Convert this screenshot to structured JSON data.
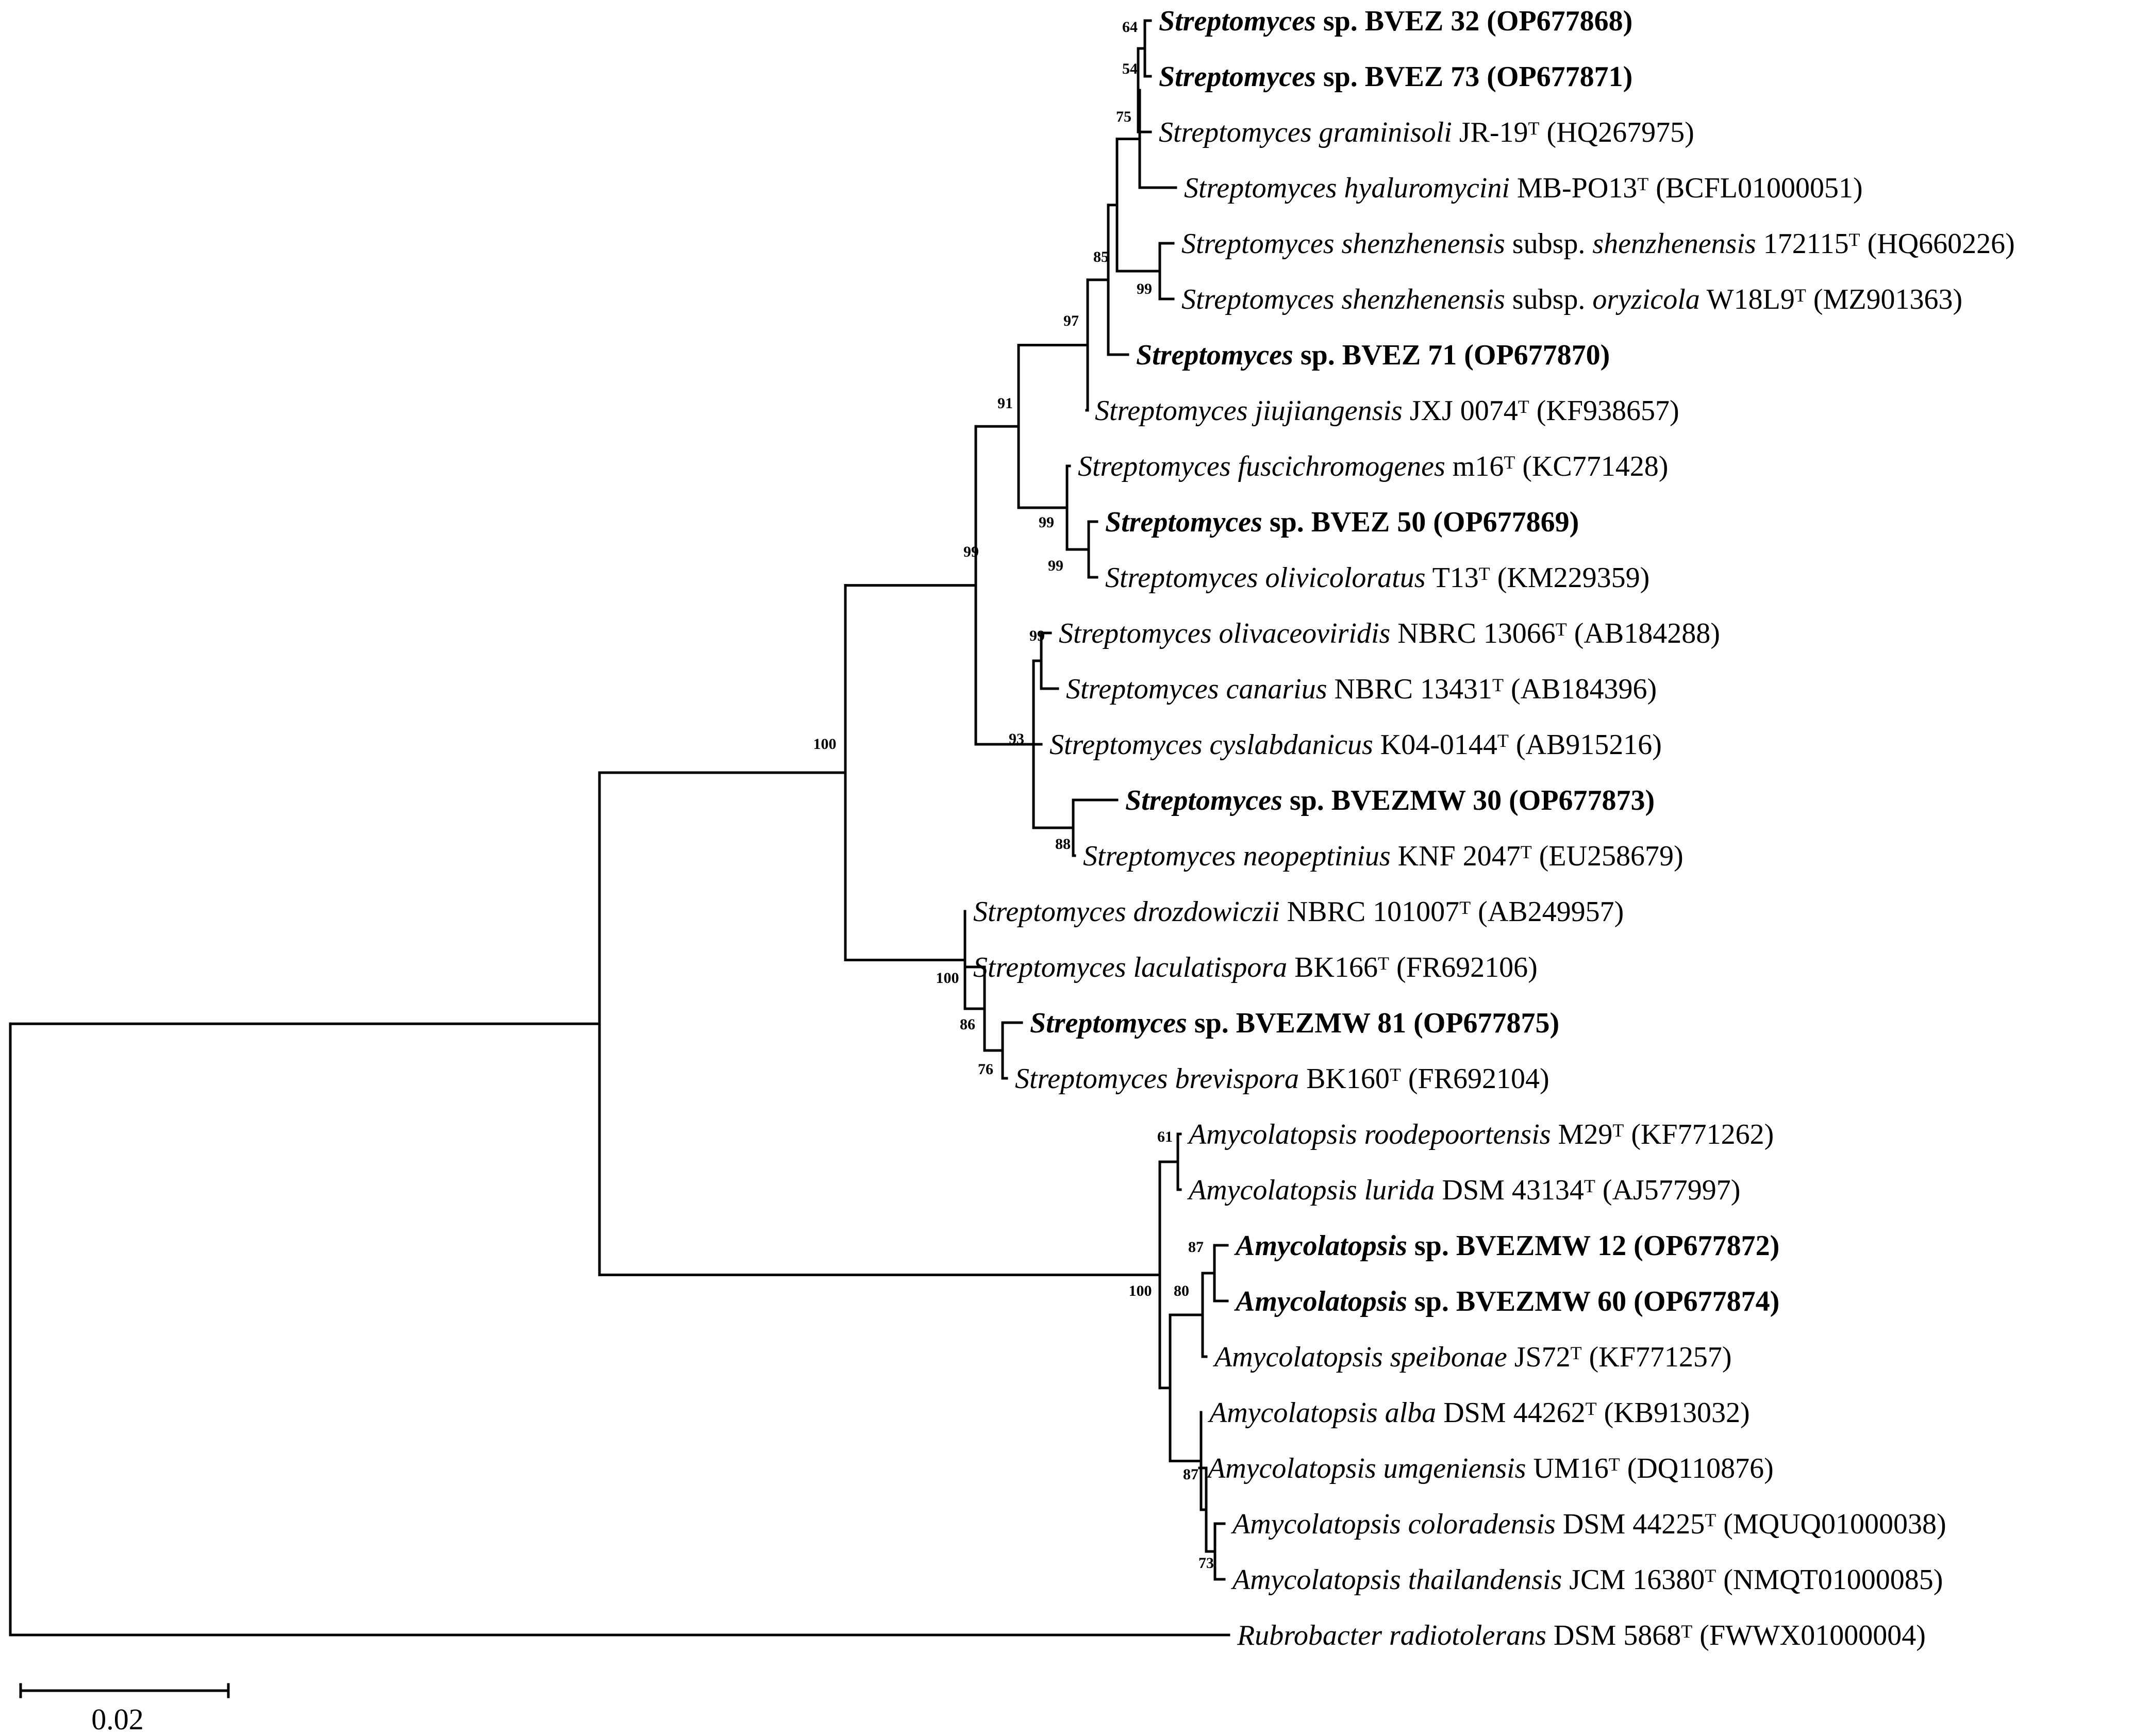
{
  "figure": {
    "type": "phylogenetic-tree",
    "scale_bar": {
      "label": "0.02"
    },
    "taxa": [
      {
        "id": "t1",
        "italic": "Streptomyces",
        "rest": " sp. BVEZ 32",
        "sup": "",
        "accession": " (OP677868)",
        "bold": true
      },
      {
        "id": "t2",
        "italic": "Streptomyces",
        "rest": " sp. BVEZ 73",
        "sup": "",
        "accession": " (OP677871)",
        "bold": true
      },
      {
        "id": "t3",
        "italic": "Streptomyces graminisoli",
        "rest": " JR-19",
        "sup": "T",
        "accession": " (HQ267975)",
        "bold": false
      },
      {
        "id": "t4",
        "italic": "Streptomyces hyaluromycini",
        "rest": " MB-PO13",
        "sup": "T",
        "accession": " (BCFL01000051)",
        "bold": false
      },
      {
        "id": "t5",
        "italic": "Streptomyces shenzhenensis",
        "rest": " subsp. ",
        "italic2": "shenzhenensis",
        "rest2": " 172115",
        "sup": "T",
        "accession": " (HQ660226)",
        "bold": false
      },
      {
        "id": "t6",
        "italic": "Streptomyces shenzhenensis",
        "rest": " subsp. ",
        "italic2": "oryzicola",
        "rest2": " W18L9",
        "sup": "T",
        "accession": " (MZ901363)",
        "bold": false
      },
      {
        "id": "t7",
        "italic": "Streptomyces",
        "rest": " sp. BVEZ 71",
        "sup": "",
        "accession": " (OP677870)",
        "bold": true
      },
      {
        "id": "t8",
        "italic": "Streptomyces jiujiangensis",
        "rest": " JXJ 0074",
        "sup": "T",
        "accession": " (KF938657)",
        "bold": false
      },
      {
        "id": "t9",
        "italic": "Streptomyces fuscichromogenes",
        "rest": " m16",
        "sup": "T",
        "accession": " (KC771428)",
        "bold": false
      },
      {
        "id": "t10",
        "italic": "Streptomyces",
        "rest": " sp. BVEZ 50",
        "sup": "",
        "accession": " (OP677869)",
        "bold": true
      },
      {
        "id": "t11",
        "italic": "Streptomyces olivicoloratus",
        "rest": " T13",
        "sup": "T",
        "accession": " (KM229359)",
        "bold": false
      },
      {
        "id": "t12",
        "italic": "Streptomyces olivaceoviridis",
        "rest": " NBRC 13066",
        "sup": "T",
        "accession": " (AB184288)",
        "bold": false
      },
      {
        "id": "t13",
        "italic": "Streptomyces canarius",
        "rest": " NBRC 13431",
        "sup": "T",
        "accession": " (AB184396)",
        "bold": false
      },
      {
        "id": "t14",
        "italic": "Streptomyces cyslabdanicus",
        "rest": " K04-0144",
        "sup": "T",
        "accession": " (AB915216)",
        "bold": false
      },
      {
        "id": "t15",
        "italic": "Streptomyces",
        "rest": " sp. BVEZMW 30",
        "sup": "",
        "accession": " (OP677873)",
        "bold": true
      },
      {
        "id": "t16",
        "italic": "Streptomyces neopeptinius",
        "rest": " KNF 2047",
        "sup": "T",
        "accession": " (EU258679)",
        "bold": false
      },
      {
        "id": "t17",
        "italic": "Streptomyces drozdowiczii",
        "rest": " NBRC 101007",
        "sup": "T",
        "accession": " (AB249957)",
        "bold": false
      },
      {
        "id": "t18",
        "italic": "Streptomyces laculatispora",
        "rest": " BK166",
        "sup": "T",
        "accession": " (FR692106)",
        "bold": false
      },
      {
        "id": "t19",
        "italic": "Streptomyces",
        "rest": " sp. BVEZMW 81",
        "sup": "",
        "accession": " (OP677875)",
        "bold": true
      },
      {
        "id": "t20",
        "italic": "Streptomyces brevispora",
        "rest": " BK160",
        "sup": "T",
        "accession": " (FR692104)",
        "bold": false
      },
      {
        "id": "t21",
        "italic": "Amycolatopsis roodepoortensis",
        "rest": " M29",
        "sup": "T",
        "accession": " (KF771262)",
        "bold": false
      },
      {
        "id": "t22",
        "italic": "Amycolatopsis lurida",
        "rest": " DSM 43134",
        "sup": "T",
        "accession": " (AJ577997)",
        "bold": false
      },
      {
        "id": "t23",
        "italic": "Amycolatopsis",
        "rest": " sp. BVEZMW 12",
        "sup": "",
        "accession": " (OP677872)",
        "bold": true
      },
      {
        "id": "t24",
        "italic": "Amycolatopsis",
        "rest": " sp. BVEZMW 60",
        "sup": "",
        "accession": " (OP677874)",
        "bold": true
      },
      {
        "id": "t25",
        "italic": "Amycolatopsis speibonae",
        "rest": " JS72",
        "sup": "T",
        "accession": " (KF771257)",
        "bold": false
      },
      {
        "id": "t26",
        "italic": "Amycolatopsis alba",
        "rest": " DSM 44262",
        "sup": "T",
        "accession": " (KB913032)",
        "bold": false
      },
      {
        "id": "t27",
        "italic": "Amycolatopsis umgeniensis",
        "rest": " UM16",
        "sup": "T",
        "accession": " (DQ110876)",
        "bold": false
      },
      {
        "id": "t28",
        "italic": "Amycolatopsis coloradensis",
        "rest": " DSM 44225",
        "sup": "T",
        "accession": " (MQUQ01000038)",
        "bold": false
      },
      {
        "id": "t29",
        "italic": "Amycolatopsis thailandensis",
        "rest": " JCM 16380",
        "sup": "T",
        "accession": " (NMQT01000085)",
        "bold": false
      },
      {
        "id": "t30",
        "italic": "Rubrobacter radiotolerans",
        "rest": " DSM 5868",
        "sup": "T",
        "accession": " (FWWX01000004)",
        "bold": false
      }
    ],
    "support_values": [
      {
        "id": "n1",
        "value": "64"
      },
      {
        "id": "n2",
        "value": "54"
      },
      {
        "id": "n3",
        "value": "75"
      },
      {
        "id": "n4",
        "value": "85"
      },
      {
        "id": "n5",
        "value": "99"
      },
      {
        "id": "n6",
        "value": "97"
      },
      {
        "id": "n7",
        "value": "91"
      },
      {
        "id": "n8",
        "value": "99"
      },
      {
        "id": "n9",
        "value": "99"
      },
      {
        "id": "n10",
        "value": "99"
      },
      {
        "id": "n11",
        "value": "99"
      },
      {
        "id": "n12",
        "value": "93"
      },
      {
        "id": "n13",
        "value": "88"
      },
      {
        "id": "n14",
        "value": "100"
      },
      {
        "id": "n15",
        "value": "100"
      },
      {
        "id": "n16",
        "value": "86"
      },
      {
        "id": "n17",
        "value": "76"
      },
      {
        "id": "n18",
        "value": "61"
      },
      {
        "id": "n19",
        "value": "87"
      },
      {
        "id": "n20",
        "value": "80"
      },
      {
        "id": "n21",
        "value": "100"
      },
      {
        "id": "n22",
        "value": "87"
      },
      {
        "id": "n23",
        "value": "73"
      }
    ]
  }
}
